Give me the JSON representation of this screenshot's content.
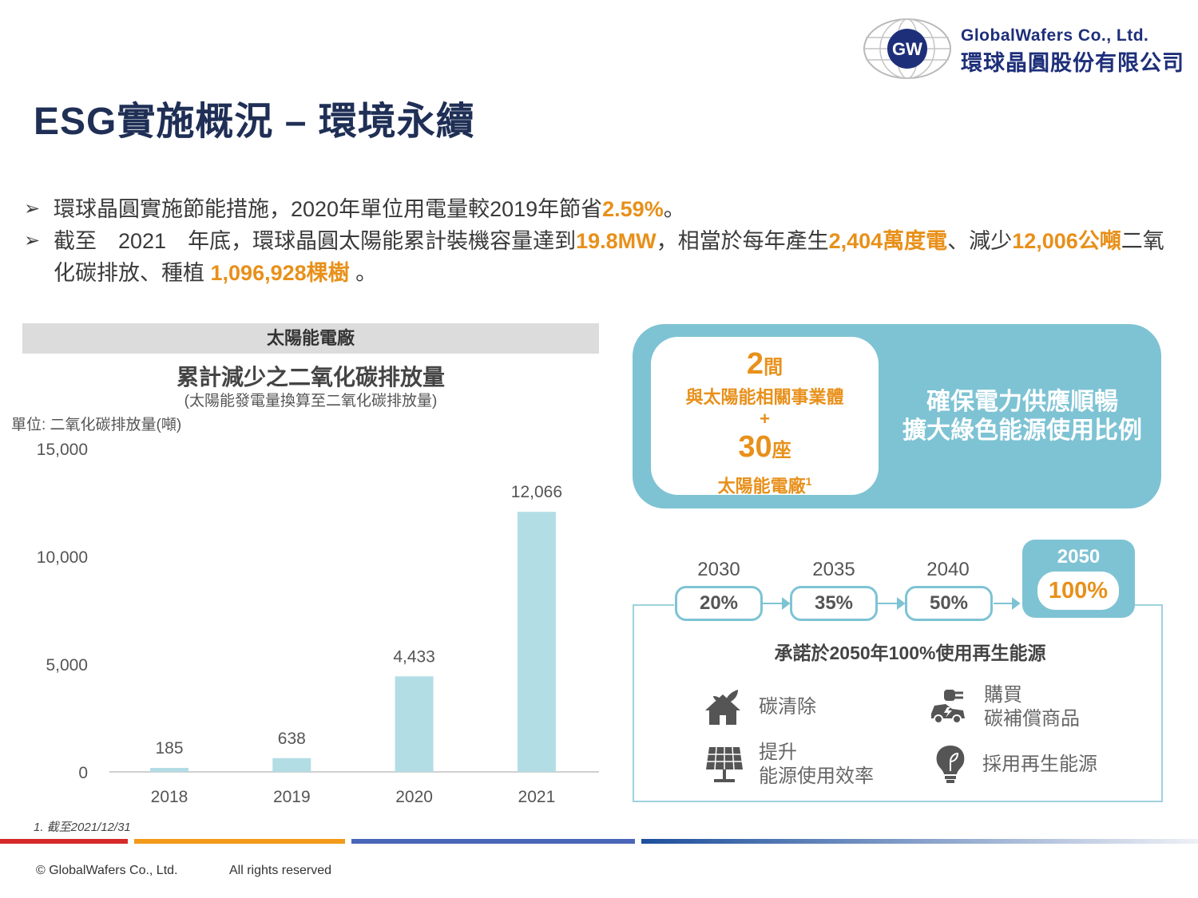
{
  "logo": {
    "mark": "GW",
    "name_en": "GlobalWafers Co., Ltd.",
    "name_zh": "環球晶圓股份有限公司"
  },
  "title": "ESG實施概況 – 環境永續",
  "bullets": [
    {
      "prefix": "環球晶圓實施節能措施，2020年單位用電量較2019年節省",
      "hl1": "2.59%",
      "suffix": "。"
    },
    {
      "p1": "截至　2021　年底，環球晶圓太陽能累計裝機容量達到",
      "h1": "19.8MW",
      "p2": "，相當於每年產生",
      "h2": "2,404萬度電",
      "p3": "、減少",
      "h3": "12,006公噸",
      "p4": "二氧化碳排放、種植 ",
      "h4": "1,096,928棵樹",
      "p5": " 。"
    }
  ],
  "chart_panel": {
    "header": "太陽能電廠",
    "unit": "單位: 二氧化碳排放量(噸)",
    "footnote": "1. 截至2021/12/31"
  },
  "chart_data": {
    "type": "bar",
    "title": "累計減少之二氧化碳排放量",
    "subtitle": "(太陽能發電量換算至二氧化碳排放量)",
    "ylabel": "單位: 二氧化碳排放量(噸)",
    "categories": [
      "2018",
      "2019",
      "2020",
      "2021"
    ],
    "values": [
      185,
      638,
      4433,
      12066
    ],
    "value_labels": [
      "185",
      "638",
      "4,433",
      "12,066"
    ],
    "yticks": [
      "0",
      "5,000",
      "10,000",
      "15,000"
    ],
    "ylim": [
      0,
      15000
    ],
    "grid": false,
    "bar_color": "#b2dde5"
  },
  "entities": {
    "num1": "2",
    "unit1": "間",
    "label1": "與太陽能相關事業體",
    "plus": "+",
    "num2": "30",
    "unit2": "座",
    "label2": "太陽能電廠",
    "sup": "1"
  },
  "goals": {
    "line1": "確保電力供應順暢",
    "line2": "擴大綠色能源使用比例"
  },
  "roadmap": [
    {
      "year": "2030",
      "pct": "20%"
    },
    {
      "year": "2035",
      "pct": "35%"
    },
    {
      "year": "2040",
      "pct": "50%"
    }
  ],
  "target": {
    "year": "2050",
    "pct": "100%"
  },
  "commitment": "承諾於2050年100%使用再生能源",
  "actions": {
    "a1": "碳清除",
    "a2_l1": "購買",
    "a2_l2": "碳補償商品",
    "a3_l1": "提升",
    "a3_l2": "能源使用效率",
    "a4": "採用再生能源"
  },
  "footer": {
    "copyright": "© GlobalWafers Co., Ltd.",
    "rights": "All rights reserved"
  },
  "colors": {
    "accent": "#e8901a",
    "teal": "#7ec3d4",
    "title": "#1f2f55",
    "brand": "#1e2f7a"
  }
}
